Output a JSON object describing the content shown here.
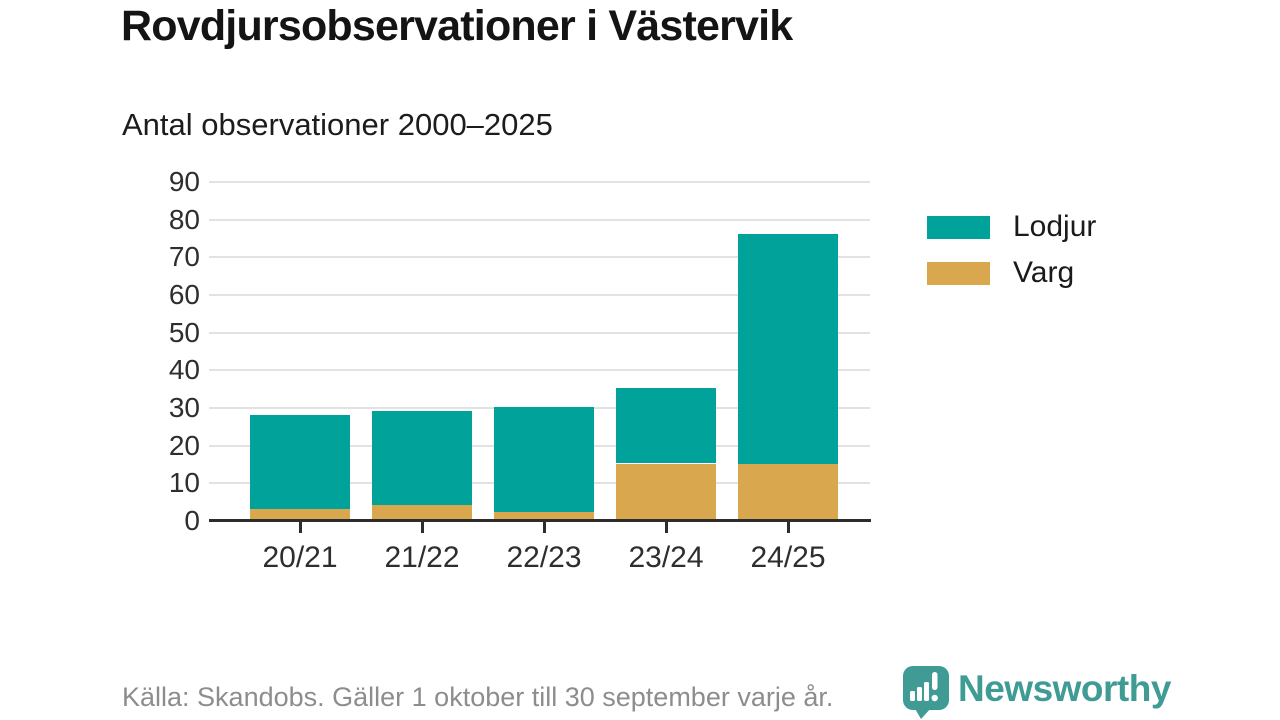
{
  "header": {},
  "chart_data": {
    "type": "bar",
    "stacked": true,
    "title": "Rovdjursobservationer i Västervik",
    "subtitle": "Antal observationer 2000–2025",
    "xlabel": "",
    "ylabel": "",
    "categories": [
      "20/21",
      "21/22",
      "22/23",
      "23/24",
      "24/25"
    ],
    "series": [
      {
        "name": "Lodjur",
        "color": "#00a29a",
        "values": [
          25,
          25,
          28,
          20,
          61
        ]
      },
      {
        "name": "Varg",
        "color": "#d9a74e",
        "values": [
          3,
          4,
          2,
          15,
          15
        ]
      }
    ],
    "stack_bottom_to_top": [
      "Varg",
      "Lodjur"
    ],
    "stacked_totals": [
      28,
      29,
      30,
      35,
      76
    ],
    "ylim": [
      0,
      90
    ],
    "yticks": [
      0,
      10,
      20,
      30,
      40,
      50,
      60,
      70,
      80,
      90
    ],
    "grid": true,
    "legend_position": "right"
  },
  "footer": {
    "source": "Källa: Skandobs. Gäller 1 oktober till 30 september varje år.",
    "brand": "Newsworthy"
  },
  "colors": {
    "lodjur": "#00a29a",
    "varg": "#d9a74e",
    "gridline": "#e2e2e2",
    "axis": "#2d2d2d",
    "title_text": "#141414",
    "muted_text": "#8d8d8d",
    "brand_teal": "#3f9b94"
  }
}
